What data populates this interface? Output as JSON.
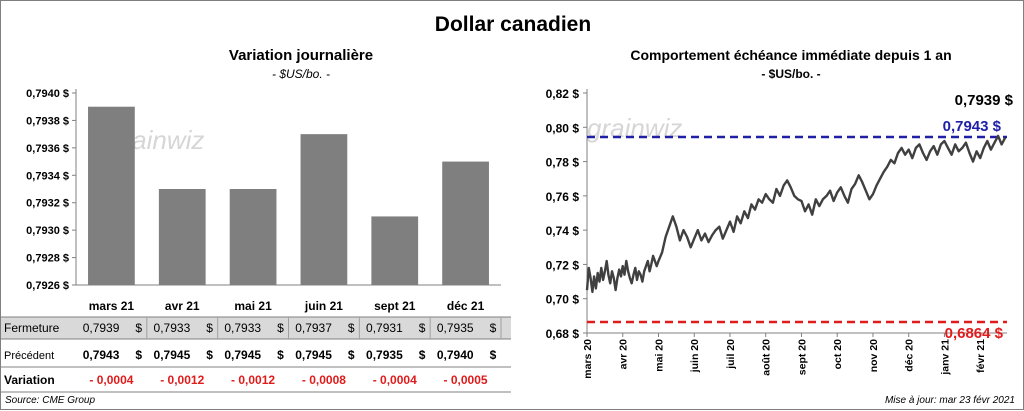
{
  "title": "Dollar canadien",
  "left_chart": {
    "title": "Variation  journalière",
    "unit": "- $US/bo. -"
  },
  "right_chart": {
    "title": "Comportement échéance immédiate depuis 1 an",
    "unit": "- $US/bo. -",
    "last_label": "0,7939 $",
    "high_label": "0,7943 $",
    "low_label": "0,6864 $"
  },
  "table": {
    "rows": [
      {
        "label": "Fermeture",
        "values": [
          "0,7939",
          "0,7933",
          "0,7933",
          "0,7937",
          "0,7931",
          "0,7935"
        ],
        "suffix": "$"
      },
      {
        "label": "Précédent",
        "values": [
          "0,7943",
          "0,7945",
          "0,7945",
          "0,7945",
          "0,7935",
          "0,7940"
        ],
        "suffix": "$"
      },
      {
        "label": "Variation",
        "values": [
          "- 0,0004",
          "- 0,0012",
          "- 0,0012",
          "- 0,0008",
          "- 0,0004",
          "- 0,0005"
        ],
        "suffix": ""
      }
    ]
  },
  "source": "Source: CME Group",
  "updated": "Mise à jour: mar 23 févr 2021",
  "watermark": "grainwiz",
  "colors": {
    "bar": "#7f7f7f",
    "line": "#404040",
    "high": "#1f1fa8",
    "low": "#e01b1b",
    "neg": "#e01b1b"
  },
  "chart_data": [
    {
      "type": "bar",
      "title": "Variation  journalière",
      "ylabel": "- $US/bo. -",
      "categories": [
        "mars 21",
        "avr 21",
        "mai 21",
        "juin 21",
        "sept 21",
        "déc 21"
      ],
      "values": [
        0.7939,
        0.7933,
        0.7933,
        0.7937,
        0.7931,
        0.7935
      ],
      "ylim": [
        0.7926,
        0.794
      ],
      "yticks": [
        0.7926,
        0.7928,
        0.793,
        0.7932,
        0.7934,
        0.7936,
        0.7938,
        0.794
      ],
      "ytick_labels": [
        "0,7926 $",
        "0,7928 $",
        "0,7930 $",
        "0,7932 $",
        "0,7934 $",
        "0,7936 $",
        "0,7938 $",
        "0,7940 $"
      ]
    },
    {
      "type": "line",
      "title": "Comportement échéance immédiate depuis 1 an",
      "ylabel": "- $US/bo. -",
      "ylim": [
        0.68,
        0.82
      ],
      "yticks": [
        0.68,
        0.7,
        0.72,
        0.74,
        0.76,
        0.78,
        0.8,
        0.82
      ],
      "ytick_labels": [
        "0,68 $",
        "0,70 $",
        "0,72 $",
        "0,74 $",
        "0,76 $",
        "0,78 $",
        "0,80 $",
        "0,82 $"
      ],
      "xlim": [
        0,
        11.75
      ],
      "xticks": [
        0,
        1,
        2,
        3,
        4,
        5,
        6,
        7,
        8,
        9,
        10,
        11
      ],
      "xtick_labels": [
        "mars 20",
        "avr 20",
        "mai 20",
        "juin 20",
        "juil 20",
        "août 20",
        "sept 20",
        "oct 20",
        "nov 20",
        "déc 20",
        "janv 21",
        "févr 21"
      ],
      "hlines": [
        {
          "name": "high",
          "value": 0.7943
        },
        {
          "name": "low",
          "value": 0.6864
        }
      ],
      "x": [
        0.0,
        0.05,
        0.1,
        0.15,
        0.2,
        0.25,
        0.3,
        0.35,
        0.4,
        0.45,
        0.5,
        0.55,
        0.6,
        0.65,
        0.7,
        0.75,
        0.8,
        0.85,
        0.9,
        0.95,
        1.0,
        1.05,
        1.1,
        1.15,
        1.2,
        1.25,
        1.3,
        1.35,
        1.4,
        1.45,
        1.5,
        1.55,
        1.6,
        1.65,
        1.7,
        1.75,
        1.8,
        1.85,
        1.9,
        1.95,
        2.0,
        2.1,
        2.2,
        2.3,
        2.4,
        2.5,
        2.6,
        2.7,
        2.8,
        2.9,
        3.0,
        3.1,
        3.2,
        3.3,
        3.4,
        3.5,
        3.6,
        3.7,
        3.8,
        3.9,
        4.0,
        4.1,
        4.2,
        4.3,
        4.4,
        4.5,
        4.6,
        4.7,
        4.8,
        4.9,
        5.0,
        5.1,
        5.2,
        5.3,
        5.4,
        5.5,
        5.6,
        5.7,
        5.8,
        5.9,
        6.0,
        6.1,
        6.2,
        6.3,
        6.4,
        6.5,
        6.6,
        6.7,
        6.8,
        6.9,
        7.0,
        7.1,
        7.2,
        7.3,
        7.4,
        7.5,
        7.6,
        7.7,
        7.8,
        7.9,
        8.0,
        8.1,
        8.2,
        8.3,
        8.4,
        8.5,
        8.6,
        8.7,
        8.8,
        8.9,
        9.0,
        9.1,
        9.2,
        9.3,
        9.4,
        9.5,
        9.6,
        9.7,
        9.8,
        9.9,
        10.0,
        10.1,
        10.2,
        10.3,
        10.4,
        10.5,
        10.6,
        10.7,
        10.8,
        10.9,
        11.0,
        11.1,
        11.2,
        11.3,
        11.4,
        11.5,
        11.6,
        11.7
      ],
      "y": [
        0.705,
        0.718,
        0.712,
        0.704,
        0.713,
        0.706,
        0.715,
        0.71,
        0.718,
        0.711,
        0.716,
        0.722,
        0.714,
        0.709,
        0.716,
        0.712,
        0.705,
        0.712,
        0.717,
        0.713,
        0.719,
        0.714,
        0.722,
        0.716,
        0.712,
        0.709,
        0.714,
        0.718,
        0.711,
        0.716,
        0.714,
        0.71,
        0.716,
        0.719,
        0.722,
        0.716,
        0.72,
        0.725,
        0.722,
        0.719,
        0.722,
        0.727,
        0.736,
        0.742,
        0.748,
        0.742,
        0.734,
        0.74,
        0.736,
        0.73,
        0.735,
        0.74,
        0.734,
        0.738,
        0.733,
        0.737,
        0.74,
        0.742,
        0.735,
        0.74,
        0.745,
        0.739,
        0.748,
        0.744,
        0.751,
        0.747,
        0.755,
        0.752,
        0.758,
        0.756,
        0.761,
        0.758,
        0.756,
        0.764,
        0.76,
        0.766,
        0.769,
        0.765,
        0.76,
        0.758,
        0.757,
        0.751,
        0.755,
        0.749,
        0.758,
        0.754,
        0.758,
        0.76,
        0.763,
        0.757,
        0.762,
        0.765,
        0.76,
        0.756,
        0.764,
        0.767,
        0.772,
        0.768,
        0.763,
        0.758,
        0.761,
        0.766,
        0.77,
        0.774,
        0.777,
        0.781,
        0.779,
        0.785,
        0.788,
        0.784,
        0.787,
        0.782,
        0.788,
        0.79,
        0.785,
        0.781,
        0.786,
        0.789,
        0.784,
        0.79,
        0.792,
        0.788,
        0.784,
        0.79,
        0.786,
        0.788,
        0.791,
        0.785,
        0.78,
        0.786,
        0.782,
        0.788,
        0.792,
        0.787,
        0.791,
        0.795,
        0.79,
        0.7939
      ]
    }
  ]
}
